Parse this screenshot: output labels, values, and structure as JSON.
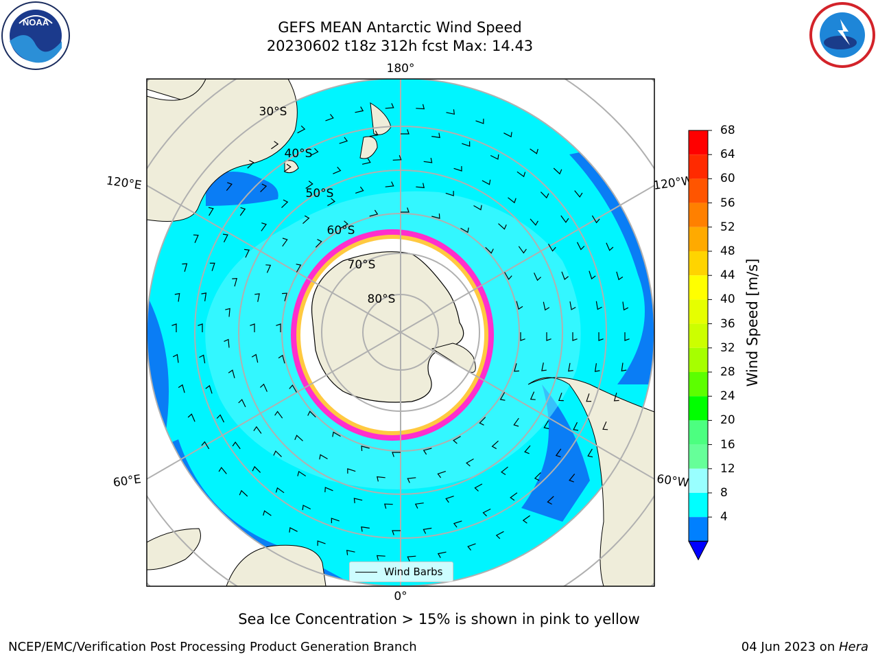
{
  "title": {
    "line1": "GEFS MEAN Antarctic Wind Speed",
    "line2": "20230602 t18z 312h fcst   Max: 14.43"
  },
  "map": {
    "projection": "south-polar-stereographic",
    "longitude_labels": [
      "180°",
      "120°E",
      "120°W",
      "60°E",
      "60°W",
      "0°"
    ],
    "latitude_labels": [
      "30°S",
      "40°S",
      "50°S",
      "60°S",
      "70°S",
      "80°S"
    ],
    "colors": {
      "land": "#efedda",
      "ocean_low": "#0a7df5",
      "ocean_mid": "#00f5ff",
      "ocean_high": "#5cf8ff",
      "ice_edge": "#ff2ecc",
      "ice_core": "#ffffff",
      "gridline": "#b0b0b0"
    }
  },
  "legend": {
    "wind_barbs_label": "Wind Barbs"
  },
  "colorbar": {
    "title": "Wind Speed [m/s]",
    "ticks": [
      "68",
      "64",
      "60",
      "56",
      "52",
      "48",
      "44",
      "40",
      "36",
      "32",
      "28",
      "24",
      "20",
      "16",
      "12",
      "8",
      "4"
    ],
    "colors": [
      "#ff0000",
      "#ff2a00",
      "#ff5500",
      "#ff8000",
      "#ffaa00",
      "#ffd400",
      "#ffff00",
      "#e6ff00",
      "#ccff00",
      "#a6ff00",
      "#5cff00",
      "#00ff00",
      "#4cff80",
      "#66ff99",
      "#99ffff",
      "#00ffff",
      "#0080ff"
    ],
    "extend_color": "#0000ff"
  },
  "footer": {
    "note": "Sea Ice Concentration > 15% is shown in pink to yellow",
    "credit": "NCEP/EMC/Verification Post Processing Product Generation Branch",
    "date": "04 Jun 2023 on ",
    "host": "Hera"
  },
  "logos": {
    "left": "noa-logo",
    "right": "nws-logo"
  }
}
